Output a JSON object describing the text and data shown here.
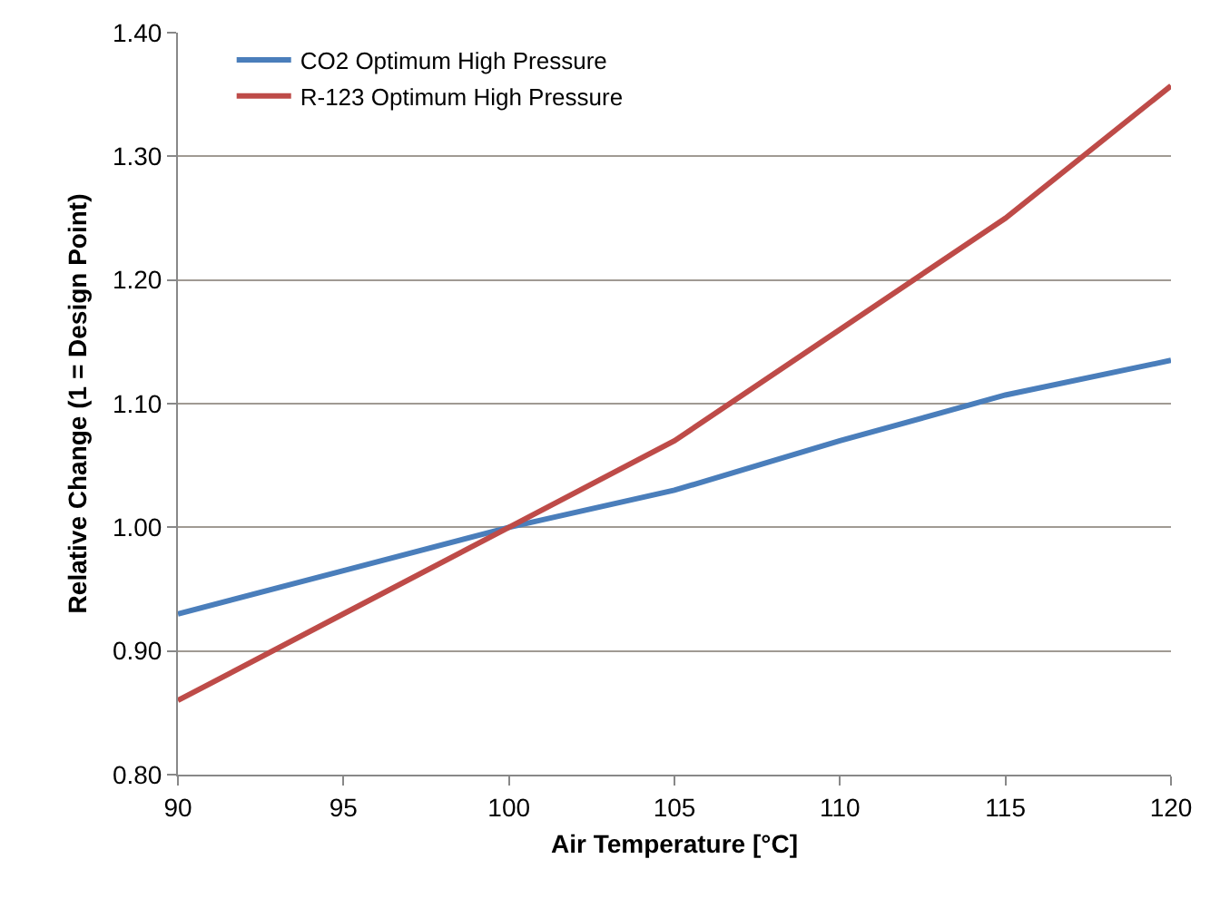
{
  "chart_data": {
    "type": "line",
    "xlabel": "Air Temperature [°C]",
    "ylabel": "Relative Change (1 = Design Point)",
    "x": [
      90,
      95,
      100,
      105,
      110,
      115,
      120
    ],
    "series": [
      {
        "name": "CO2 Optimum High Pressure",
        "color": "#4a7ebb",
        "values": [
          0.93,
          0.965,
          1.0,
          1.03,
          1.07,
          1.107,
          1.135
        ]
      },
      {
        "name": "R-123 Optimum High Pressure",
        "color": "#be4b48",
        "values": [
          0.86,
          0.93,
          1.0,
          1.07,
          1.16,
          1.25,
          1.357
        ]
      }
    ],
    "xlim": [
      90,
      120
    ],
    "xticks": [
      90,
      95,
      100,
      105,
      110,
      115,
      120
    ],
    "ylim": [
      0.8,
      1.4
    ],
    "yticks": [
      {
        "value": 0.8,
        "label": "0.80"
      },
      {
        "value": 0.9,
        "label": "0.90"
      },
      {
        "value": 1.0,
        "label": "1.00"
      },
      {
        "value": 1.1,
        "label": "1.10"
      },
      {
        "value": 1.2,
        "label": "1.20"
      },
      {
        "value": 1.3,
        "label": "1.30"
      },
      {
        "value": 1.4,
        "label": "1.40"
      }
    ],
    "grid": "y",
    "legend": "top left",
    "marker": "none",
    "line_style": "solid"
  }
}
